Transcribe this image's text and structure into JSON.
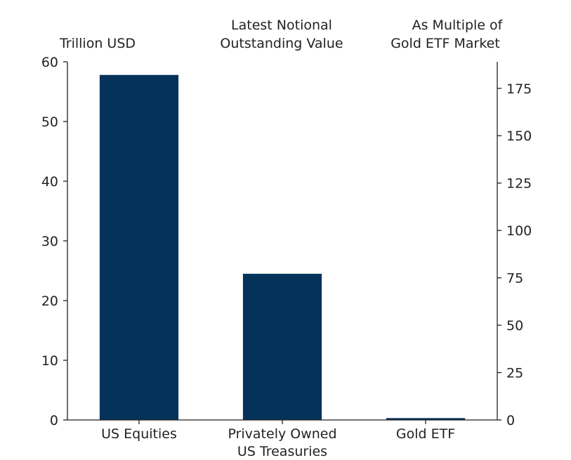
{
  "chart_data": {
    "type": "bar",
    "title": "Latest Notional Outstanding Value",
    "ylabel_left": "Trillion USD",
    "ylabel_right": "As Multiple of Gold ETF Market",
    "categories": [
      "US Equities",
      "Privately Owned US Treasuries",
      "Gold ETF"
    ],
    "category_lines": [
      [
        "US Equities"
      ],
      [
        "Privately Owned",
        "US Treasuries"
      ],
      [
        "Gold ETF"
      ]
    ],
    "values": [
      57.8,
      24.5,
      0.32
    ],
    "ylim_left": [
      0,
      60
    ],
    "yticks_left": [
      0,
      10,
      20,
      30,
      40,
      50,
      60
    ],
    "ylim_right": [
      0,
      189
    ],
    "yticks_right": [
      0,
      25,
      50,
      75,
      100,
      125,
      150,
      175
    ],
    "grid": false,
    "bar_color": "#05325a"
  }
}
